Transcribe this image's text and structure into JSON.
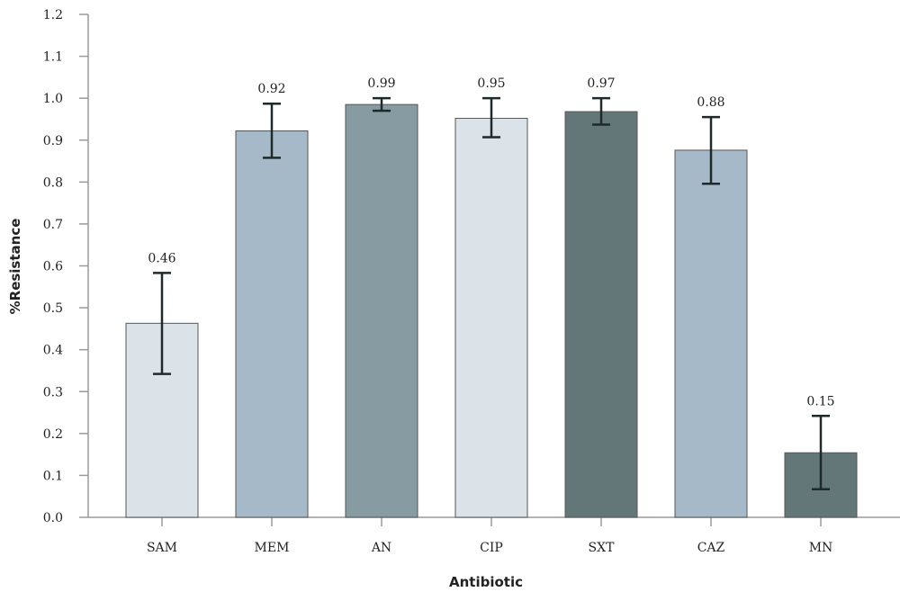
{
  "chart_data": {
    "type": "bar",
    "title": "",
    "xlabel": "Antibiotic",
    "ylabel": "%Resistance",
    "ylim": [
      0,
      1.2
    ],
    "yticks": [
      "0.0",
      "0.1",
      "0.2",
      "0.3",
      "0.4",
      "0.5",
      "0.6",
      "0.7",
      "0.8",
      "0.9",
      "1.0",
      "1.1",
      "1.2"
    ],
    "grid": false,
    "categories": [
      "SAM",
      "MEM",
      "AN",
      "CIP",
      "SXT",
      "CAZ",
      "MN"
    ],
    "values": [
      0.463,
      0.922,
      0.985,
      0.952,
      0.968,
      0.876,
      0.154
    ],
    "value_labels": [
      "0.46",
      "0.92",
      "0.99",
      "0.95",
      "0.97",
      "0.88",
      "0.15"
    ],
    "error_low": [
      0.342,
      0.858,
      0.97,
      0.907,
      0.937,
      0.796,
      0.067
    ],
    "error_high": [
      0.583,
      0.987,
      1.0,
      1.0,
      1.0,
      0.955,
      0.242
    ],
    "bar_colors": [
      "#dce3e8",
      "#a6b9c8",
      "#869ca2",
      "#dce3e8",
      "#637779",
      "#a6b9c8",
      "#637779"
    ]
  }
}
